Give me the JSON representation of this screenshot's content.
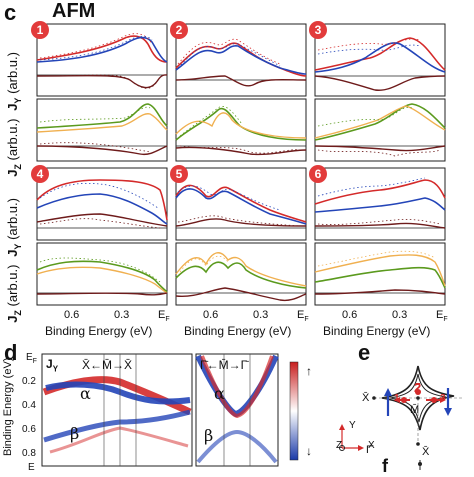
{
  "panel_c": {
    "letter": "c",
    "title": "AFM",
    "ylabel_top": "J",
    "ylabel_top_sub": "Y",
    "ylabel_top_unit": "(arb.u.)",
    "ylabel_bottom": "J",
    "ylabel_bottom_sub": "Z",
    "ylabel_bottom_unit": "(arb.u.)",
    "xlabel": "Binding Energy (eV)",
    "xticks": [
      "0.6",
      "0.3",
      "E"
    ],
    "xtick_ef_sub": "F",
    "badges": [
      "1",
      "2",
      "3",
      "4",
      "5",
      "6"
    ]
  },
  "panel_d": {
    "letter": "d",
    "ylabel": "Binding Energy (eV)",
    "yticks": [
      "E",
      "0.2",
      "0.4",
      "0.6",
      "0.8"
    ],
    "ytick_ef_sub": "F",
    "left_title_j": "J",
    "left_title_j_sub": "Y",
    "left_path": "X̄←M̄→X̄",
    "right_path": "Γ̄←M̄→Γ̄",
    "alpha": "α",
    "beta": "β",
    "colorbar_up": "↑",
    "colorbar_down": "↓",
    "bottom_label": "E"
  },
  "panel_e": {
    "letter": "e",
    "points": [
      "1",
      "2",
      "3"
    ],
    "x_label": "X̄",
    "m_label": "M̄",
    "gamma_label": "Γ̄",
    "axis_y": "Y",
    "axis_z": "Z",
    "axis_x": "X"
  },
  "panel_f": {
    "letter": "f"
  },
  "colors": {
    "red": "#d42a2a",
    "blue": "#2445b8",
    "dark": "#6e1b1b",
    "green": "#5b9a1e",
    "orange": "#f0b050",
    "badge": "#e23b3b"
  }
}
